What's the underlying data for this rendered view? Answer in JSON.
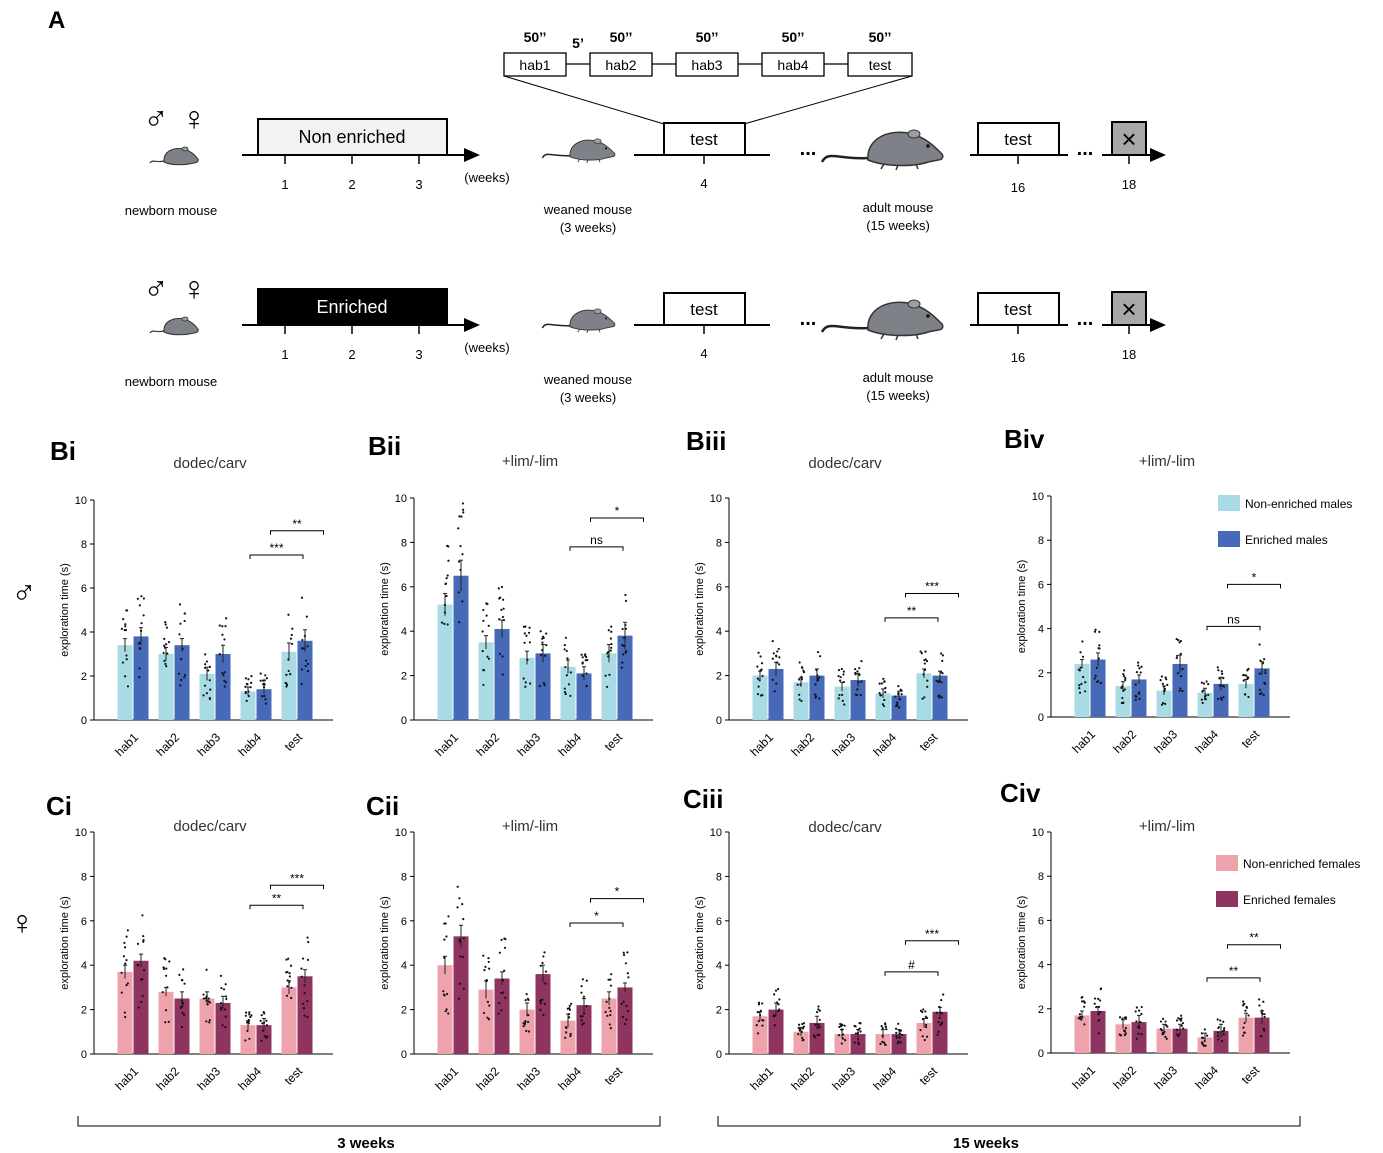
{
  "panel_a": {
    "label": "A",
    "protocol": {
      "durations": [
        "50’’",
        "50’’",
        "50’’",
        "50’’",
        "50’’"
      ],
      "gap": "5’",
      "boxes": [
        "hab1",
        "hab2",
        "hab3",
        "hab4",
        "test"
      ]
    },
    "row_non_enriched": {
      "sex_male": "♂",
      "sex_female": "♀",
      "newborn": "newborn mouse",
      "box": "Non enriched",
      "ticks": [
        "1",
        "2",
        "3"
      ],
      "weeks": "(weeks)",
      "weaned": [
        "weaned mouse",
        "(3 weeks)"
      ],
      "test4": "test",
      "tick4": "4",
      "ellipsis": "...",
      "adult": [
        "adult mouse",
        "(15 weeks)"
      ],
      "test16": "test",
      "tick16": "16",
      "ellipsis2": "...",
      "end_mark": "×",
      "tick18": "18"
    },
    "row_enriched": {
      "sex_male": "♂",
      "sex_female": "♀",
      "newborn": "newborn mouse",
      "box": "Enriched",
      "ticks": [
        "1",
        "2",
        "3"
      ],
      "weeks": "(weeks)",
      "weaned": [
        "weaned mouse",
        "(3 weeks)"
      ],
      "test4": "test",
      "tick4": "4",
      "ellipsis": "...",
      "adult": [
        "adult mouse",
        "(15 weeks)"
      ],
      "test16": "test",
      "tick16": "16",
      "ellipsis2": "...",
      "end_mark": "×",
      "tick18": "18"
    }
  },
  "row_symbols": {
    "male": "♂",
    "female": "♀"
  },
  "bottom_labels": {
    "left": "3 weeks",
    "right": "15 weeks"
  },
  "legends": {
    "males": [
      {
        "name": "Non-enriched males",
        "color": "#a8dbe3"
      },
      {
        "name": "Enriched males",
        "color": "#4669b8"
      }
    ],
    "females": [
      {
        "name": "Non-enriched females",
        "color": "#eea3ac"
      },
      {
        "name": "Enriched females",
        "color": "#8f3461"
      }
    ]
  },
  "chart_data": [
    {
      "panel": "Bi",
      "type": "bar",
      "title": "dodec/carv",
      "ylabel": "exploration time (s)",
      "ylim": [
        0,
        10
      ],
      "yticks": [
        "0",
        "2",
        "4",
        "6",
        "8",
        "10"
      ],
      "categories": [
        "hab1",
        "hab2",
        "hab3",
        "hab4",
        "test"
      ],
      "series": [
        {
          "values": [
            3.4,
            3.0,
            2.1,
            1.3,
            3.1
          ],
          "errors": [
            0.3,
            0.3,
            0.3,
            0.2,
            0.4
          ],
          "color": "#a8dbe3"
        },
        {
          "values": [
            3.8,
            3.4,
            3.0,
            1.4,
            3.6
          ],
          "errors": [
            0.4,
            0.3,
            0.4,
            0.2,
            0.5
          ],
          "color": "#4669b8"
        }
      ],
      "annotations": [
        {
          "from": 3,
          "to": 4,
          "text": "***",
          "y": 7.5
        },
        {
          "from": 3.5,
          "to": 4.5,
          "text": "**",
          "y": 8.6
        }
      ]
    },
    {
      "panel": "Bii",
      "type": "bar",
      "title": "+lim/-lim",
      "ylabel": "exploration time (s)",
      "ylim": [
        0,
        10
      ],
      "yticks": [
        "0",
        "2",
        "4",
        "6",
        "8",
        "10"
      ],
      "categories": [
        "hab1",
        "hab2",
        "hab3",
        "hab4",
        "test"
      ],
      "series": [
        {
          "values": [
            5.2,
            3.5,
            2.8,
            2.4,
            3.0
          ],
          "errors": [
            0.5,
            0.3,
            0.3,
            0.3,
            0.4
          ],
          "color": "#a8dbe3"
        },
        {
          "values": [
            6.5,
            4.1,
            3.0,
            2.1,
            3.8
          ],
          "errors": [
            0.7,
            0.4,
            0.4,
            0.3,
            0.6
          ],
          "color": "#4669b8"
        }
      ],
      "annotations": [
        {
          "from": 3,
          "to": 4,
          "text": "ns",
          "y": 7.8
        },
        {
          "from": 3.5,
          "to": 4.5,
          "text": "*",
          "y": 9.1
        }
      ]
    },
    {
      "panel": "Biii",
      "type": "bar",
      "title": "dodec/carv",
      "ylabel": "exploration time (s)",
      "ylim": [
        0,
        10
      ],
      "yticks": [
        "0",
        "2",
        "4",
        "6",
        "8",
        "10"
      ],
      "categories": [
        "hab1",
        "hab2",
        "hab3",
        "hab4",
        "test"
      ],
      "series": [
        {
          "values": [
            2.0,
            1.7,
            1.5,
            1.2,
            2.1
          ],
          "errors": [
            0.2,
            0.2,
            0.2,
            0.2,
            0.2
          ],
          "color": "#a8dbe3"
        },
        {
          "values": [
            2.3,
            2.0,
            1.8,
            1.1,
            2.0
          ],
          "errors": [
            0.3,
            0.3,
            0.3,
            0.2,
            0.2
          ],
          "color": "#4669b8"
        }
      ],
      "annotations": [
        {
          "from": 3,
          "to": 4,
          "text": "**",
          "y": 4.6
        },
        {
          "from": 3.5,
          "to": 4.5,
          "text": "***",
          "y": 5.7
        }
      ]
    },
    {
      "panel": "Biv",
      "type": "bar",
      "title": "+lim/-lim",
      "ylabel": "exploration time (s)",
      "ylim": [
        0,
        10
      ],
      "yticks": [
        "0",
        "2",
        "4",
        "6",
        "8",
        "10"
      ],
      "categories": [
        "hab1",
        "hab2",
        "hab3",
        "hab4",
        "test"
      ],
      "series": [
        {
          "values": [
            2.4,
            1.4,
            1.2,
            1.1,
            1.5
          ],
          "errors": [
            0.2,
            0.2,
            0.2,
            0.2,
            0.2
          ],
          "color": "#a8dbe3"
        },
        {
          "values": [
            2.6,
            1.7,
            2.4,
            1.5,
            2.2
          ],
          "errors": [
            0.3,
            0.2,
            0.4,
            0.3,
            0.3
          ],
          "color": "#4669b8"
        }
      ],
      "annotations": [
        {
          "from": 3,
          "to": 4,
          "text": "ns",
          "y": 4.1
        },
        {
          "from": 3.5,
          "to": 4.5,
          "text": "*",
          "y": 6.0
        }
      ]
    },
    {
      "panel": "Ci",
      "type": "bar",
      "title": "dodec/carv",
      "ylabel": "exploration time (s)",
      "ylim": [
        0,
        10
      ],
      "yticks": [
        "0",
        "2",
        "4",
        "6",
        "8",
        "10"
      ],
      "categories": [
        "hab1",
        "hab2",
        "hab3",
        "hab4",
        "test"
      ],
      "series": [
        {
          "values": [
            3.7,
            2.8,
            2.5,
            1.3,
            3.0
          ],
          "errors": [
            0.3,
            0.2,
            0.3,
            0.2,
            0.3
          ],
          "color": "#eea3ac"
        },
        {
          "values": [
            4.2,
            2.5,
            2.3,
            1.3,
            3.5
          ],
          "errors": [
            0.3,
            0.3,
            0.3,
            0.3,
            0.3
          ],
          "color": "#8f3461"
        }
      ],
      "annotations": [
        {
          "from": 3,
          "to": 4,
          "text": "**",
          "y": 6.7
        },
        {
          "from": 3.5,
          "to": 4.5,
          "text": "***",
          "y": 7.6
        }
      ]
    },
    {
      "panel": "Cii",
      "type": "bar",
      "title": "+lim/-lim",
      "ylabel": "exploration time (s)",
      "ylim": [
        0,
        10
      ],
      "yticks": [
        "0",
        "2",
        "4",
        "6",
        "8",
        "10"
      ],
      "categories": [
        "hab1",
        "hab2",
        "hab3",
        "hab4",
        "test"
      ],
      "series": [
        {
          "values": [
            4.0,
            2.9,
            2.0,
            1.5,
            2.5
          ],
          "errors": [
            0.4,
            0.4,
            0.3,
            0.3,
            0.3
          ],
          "color": "#eea3ac"
        },
        {
          "values": [
            5.3,
            3.4,
            3.6,
            2.2,
            3.0
          ],
          "errors": [
            0.5,
            0.3,
            0.4,
            0.3,
            0.2
          ],
          "color": "#8f3461"
        }
      ],
      "annotations": [
        {
          "from": 3,
          "to": 4,
          "text": "*",
          "y": 5.9
        },
        {
          "from": 3.5,
          "to": 4.5,
          "text": "*",
          "y": 7.0
        }
      ]
    },
    {
      "panel": "Ciii",
      "type": "bar",
      "title": "dodec/carv",
      "ylabel": "exploration time (s)",
      "ylim": [
        0,
        10
      ],
      "yticks": [
        "0",
        "2",
        "4",
        "6",
        "8",
        "10"
      ],
      "categories": [
        "hab1",
        "hab2",
        "hab3",
        "hab4",
        "test"
      ],
      "series": [
        {
          "values": [
            1.7,
            1.0,
            0.9,
            0.9,
            1.4
          ],
          "errors": [
            0.2,
            0.2,
            0.2,
            0.2,
            0.2
          ],
          "color": "#eea3ac"
        },
        {
          "values": [
            2.0,
            1.4,
            0.9,
            0.9,
            1.9
          ],
          "errors": [
            0.3,
            0.3,
            0.2,
            0.2,
            0.2
          ],
          "color": "#8f3461"
        }
      ],
      "annotations": [
        {
          "from": 3,
          "to": 4,
          "text": "#",
          "y": 3.7
        },
        {
          "from": 3.5,
          "to": 4.5,
          "text": "***",
          "y": 5.1
        }
      ]
    },
    {
      "panel": "Civ",
      "type": "bar",
      "title": "+lim/-lim",
      "ylabel": "exploration time (s)",
      "ylim": [
        0,
        10
      ],
      "yticks": [
        "0",
        "2",
        "4",
        "6",
        "8",
        "10"
      ],
      "categories": [
        "hab1",
        "hab2",
        "hab3",
        "hab4",
        "test"
      ],
      "series": [
        {
          "values": [
            1.7,
            1.3,
            1.1,
            0.7,
            1.6
          ],
          "errors": [
            0.2,
            0.2,
            0.2,
            0.2,
            0.2
          ],
          "color": "#eea3ac"
        },
        {
          "values": [
            1.9,
            1.4,
            1.1,
            1.0,
            1.6
          ],
          "errors": [
            0.2,
            0.3,
            0.2,
            0.3,
            0.3
          ],
          "color": "#8f3461"
        }
      ],
      "annotations": [
        {
          "from": 3,
          "to": 4,
          "text": "**",
          "y": 3.4
        },
        {
          "from": 3.5,
          "to": 4.5,
          "text": "**",
          "y": 4.9
        }
      ]
    }
  ]
}
